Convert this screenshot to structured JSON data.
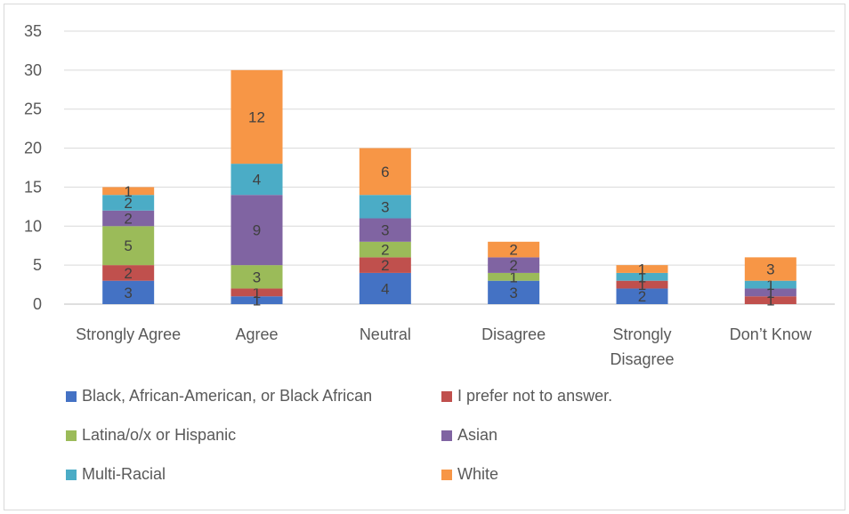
{
  "chart_data": {
    "type": "bar",
    "stacked": true,
    "categories": [
      [
        "Strongly Agree"
      ],
      [
        "Agree"
      ],
      [
        "Neutral"
      ],
      [
        "Disagree"
      ],
      [
        "Strongly",
        "Disagree"
      ],
      [
        "Don’t Know"
      ]
    ],
    "ylim": [
      0,
      35
    ],
    "yticks": [
      0,
      5,
      10,
      15,
      20,
      25,
      30,
      35
    ],
    "grid": true,
    "legend_position": "bottom",
    "series": [
      {
        "name": "Black, African-American, or Black African",
        "color": "#4472C4",
        "values": [
          3,
          1,
          4,
          3,
          2,
          0
        ]
      },
      {
        "name": "I prefer not to answer.",
        "color": "#C0504D",
        "values": [
          2,
          1,
          2,
          0,
          1,
          1
        ]
      },
      {
        "name": "Latina/o/x or Hispanic",
        "color": "#9BBB59",
        "values": [
          5,
          3,
          2,
          1,
          0,
          0
        ]
      },
      {
        "name": "Asian",
        "color": "#8064A2",
        "values": [
          2,
          9,
          3,
          2,
          0,
          1
        ]
      },
      {
        "name": "Multi-Racial",
        "color": "#4BACC6",
        "values": [
          2,
          4,
          3,
          0,
          1,
          1
        ]
      },
      {
        "name": "White",
        "color": "#F79646",
        "values": [
          1,
          12,
          6,
          2,
          1,
          3
        ]
      }
    ]
  }
}
